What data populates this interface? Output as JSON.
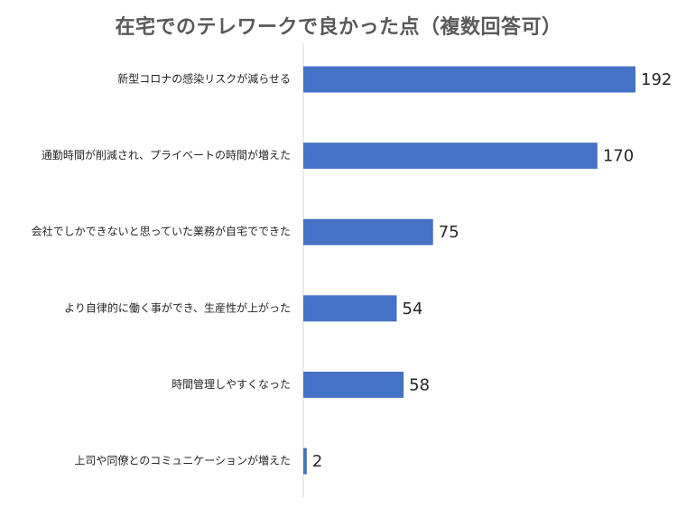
{
  "chart_data": {
    "type": "bar",
    "orientation": "horizontal",
    "title": "在宅でのテレワークで良かった点（複数回答可）",
    "categories": [
      "新型コロナの感染リスクが減らせる",
      "通勤時間が削減され、プライベートの時間が増えた",
      "会社でしかできないと思っていた業務が自宅でできた",
      "より自律的に働く事ができ、生産性が上がった",
      "時間管理しやすくなった",
      "上司や同僚とのコミュニケーションが増えた"
    ],
    "values": [
      192,
      170,
      75,
      54,
      58,
      2
    ],
    "data_labels": [
      "192",
      "170",
      "75",
      "54",
      "58",
      "2"
    ],
    "xlim": [
      0,
      192
    ],
    "grid": false,
    "legend": "none",
    "colors": {
      "bar": "#4472C4",
      "axis": "#D9D9D9",
      "text": "#262626",
      "title": "#595959"
    }
  }
}
